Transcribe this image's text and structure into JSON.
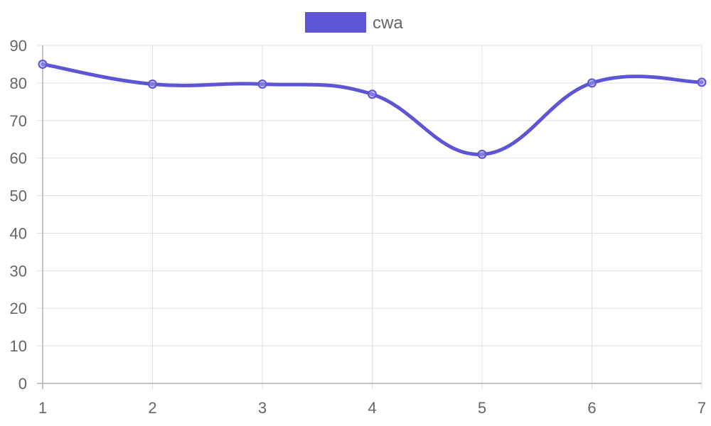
{
  "chart_data": {
    "type": "line",
    "categories": [
      "1",
      "2",
      "3",
      "4",
      "5",
      "6",
      "7"
    ],
    "series": [
      {
        "name": "cwa",
        "values": [
          85,
          79.7,
          79.7,
          77,
          61,
          80,
          80.2
        ],
        "color": "#5e55d4"
      }
    ],
    "ylim": [
      0,
      90
    ],
    "y_ticks": [
      0,
      10,
      20,
      30,
      40,
      50,
      60,
      70,
      80,
      90
    ],
    "grid": true,
    "legend_position": "top-center",
    "title": "",
    "xlabel": "",
    "ylabel": ""
  }
}
